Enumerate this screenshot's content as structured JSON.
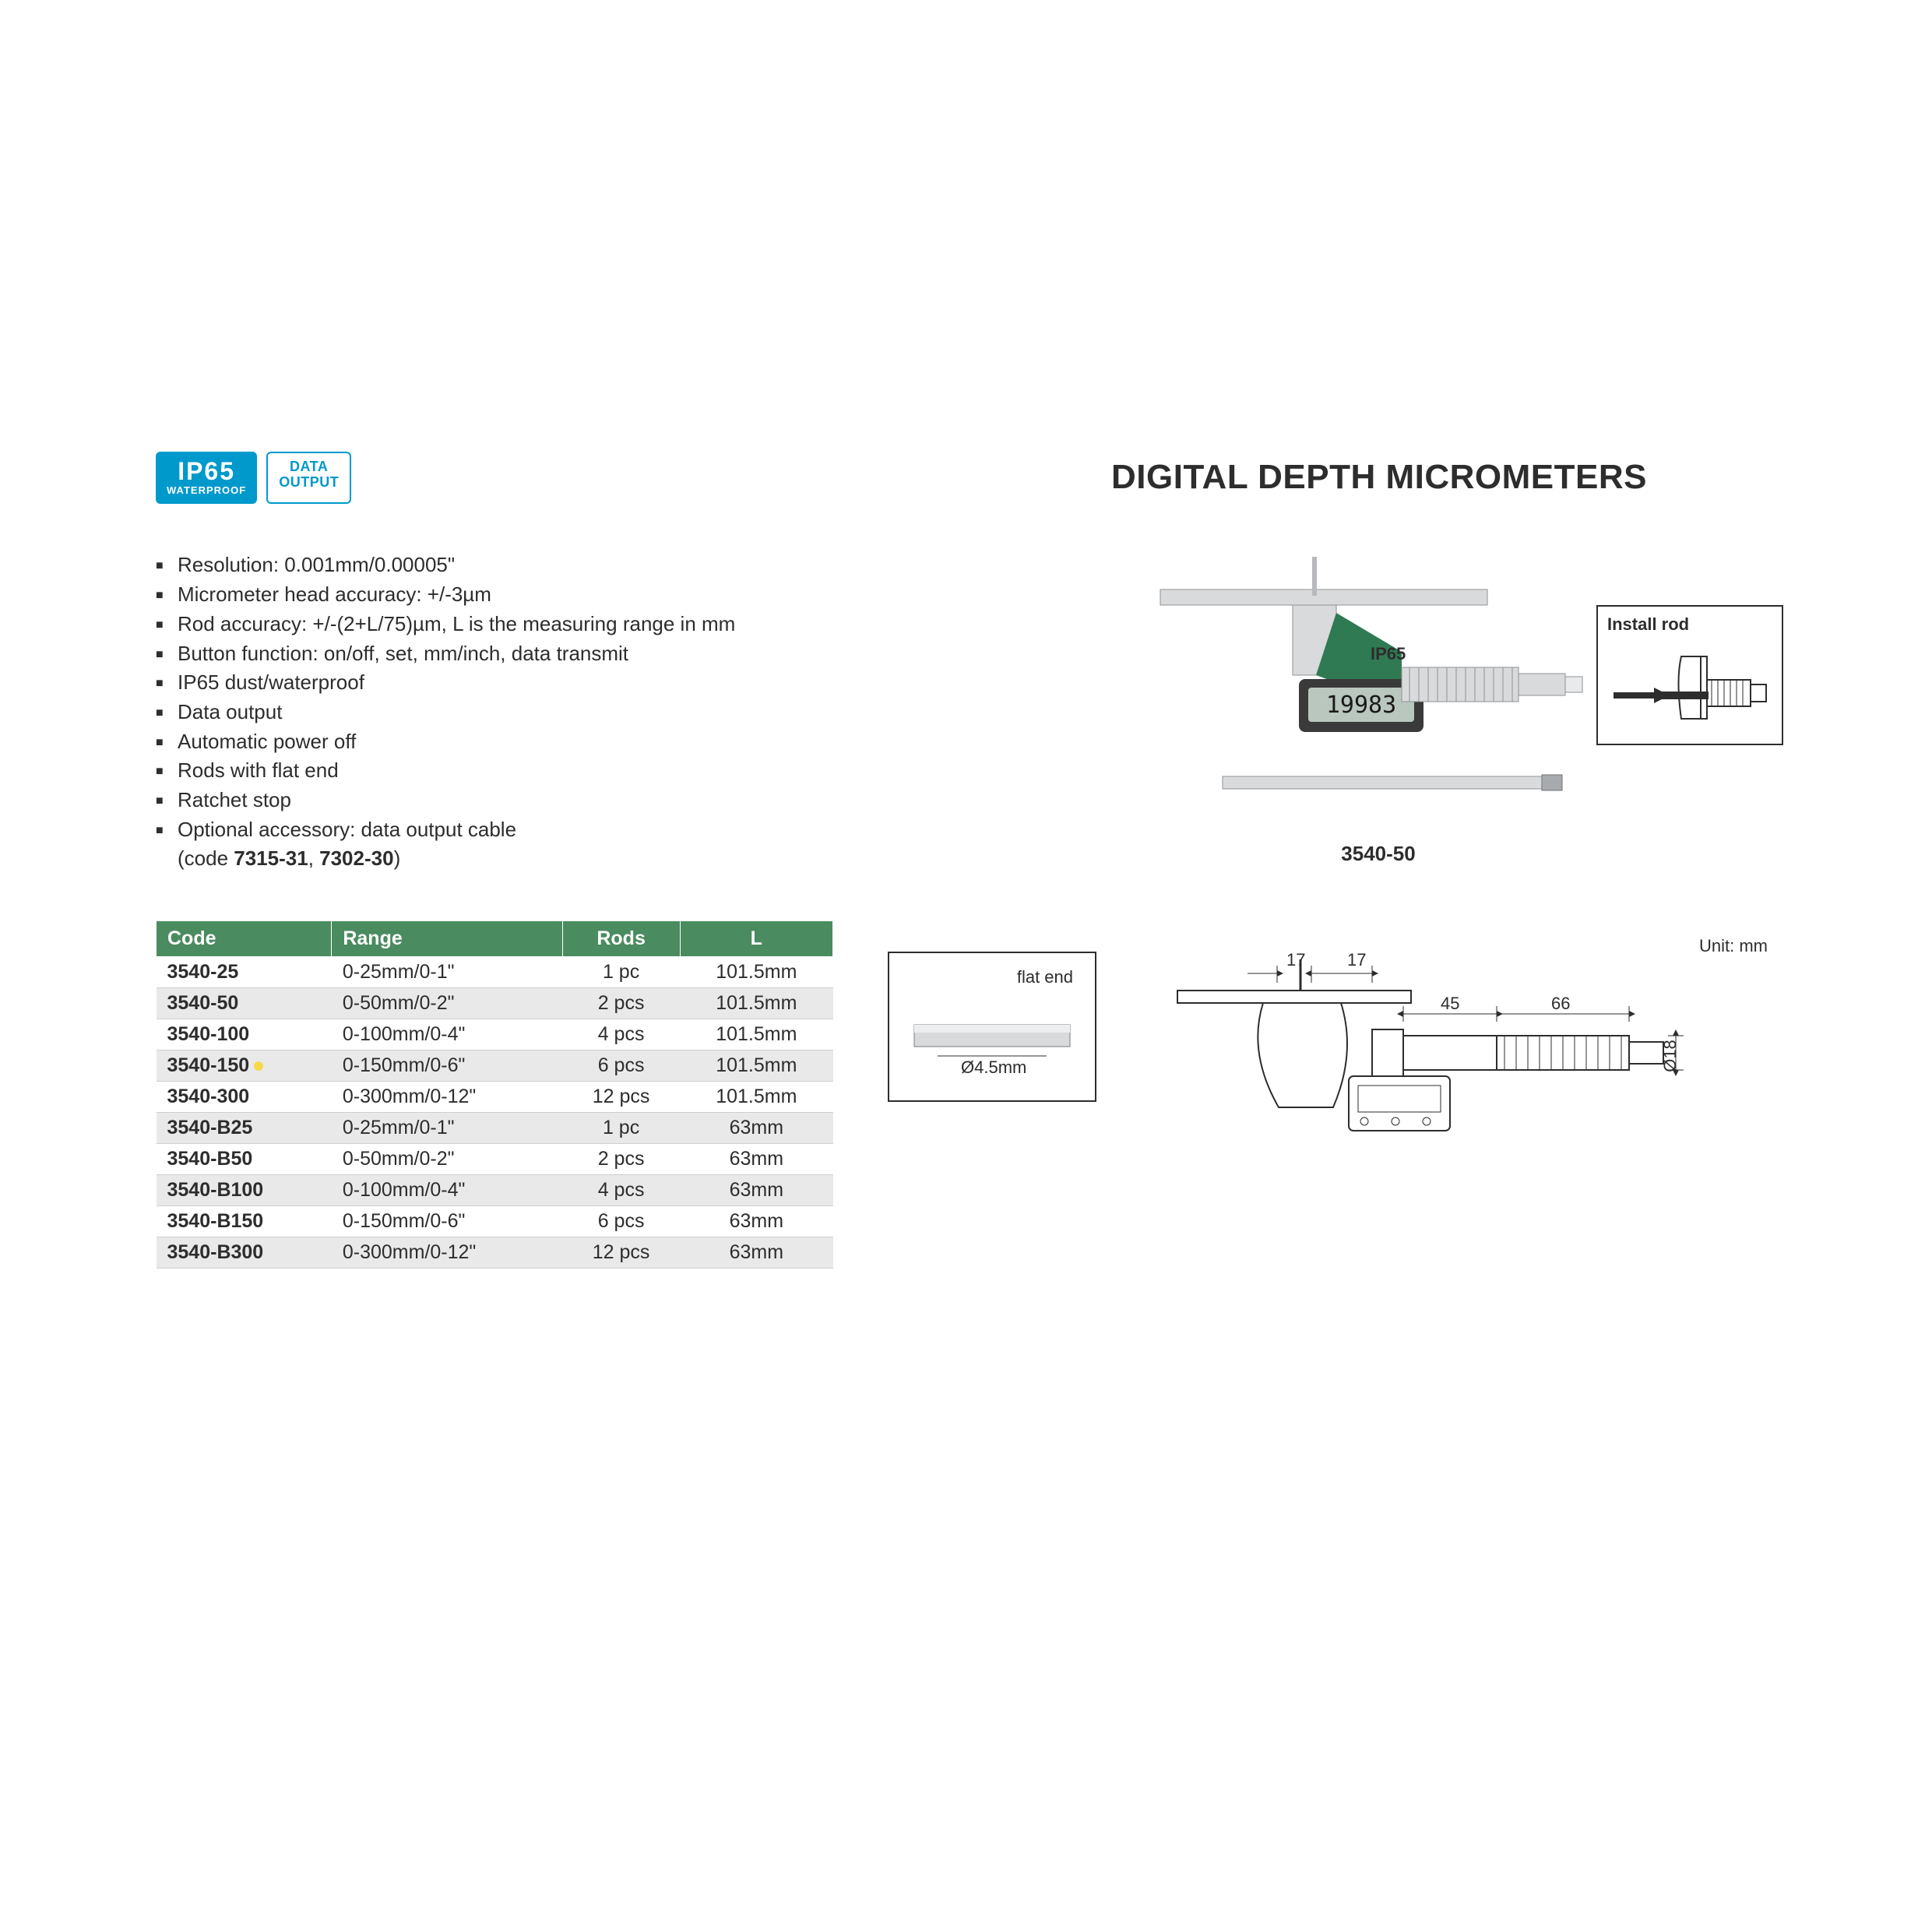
{
  "title": "DIGITAL DEPTH MICROMETERS",
  "badges": {
    "ip65_big": "IP65",
    "ip65_small": "WATERPROOF",
    "data1": "DATA",
    "data2": "OUTPUT"
  },
  "specs": [
    "Resolution: 0.001mm/0.00005\"",
    "Micrometer head accuracy: +/-3µm",
    "Rod accuracy: +/-(2+L/75)µm, L is the measuring range in mm",
    "Button function: on/off, set, mm/inch, data transmit",
    "IP65 dust/waterproof",
    "Data output",
    "Automatic power off",
    "Rods with flat end",
    "Ratchet stop",
    "Optional accessory: data output cable"
  ],
  "specs_sub": "(code 7315-31, 7302-30)",
  "specs_sub_bold1": "7315-31",
  "specs_sub_bold2": "7302-30",
  "product_caption": "3540-50",
  "product_display_value": "19983",
  "product_ip_label": "IP65",
  "install_label": "Install rod",
  "unit_label": "Unit: mm",
  "flat_end_label": "flat end",
  "flat_end_dia": "Ø4.5mm",
  "dims": {
    "t1": "17",
    "t2": "17",
    "d1": "45",
    "d2": "66",
    "dia": "Ø18"
  },
  "table": {
    "headers": [
      "Code",
      "Range",
      "Rods",
      "L"
    ],
    "header_bg": "#4a8b5f",
    "header_fg": "#ffffff",
    "row_odd_bg": "#ffffff",
    "row_even_bg": "#e9e9e9",
    "highlight_dot_color": "#f5d94a",
    "highlighted_row_index": 3,
    "col_align": [
      "left",
      "left",
      "center",
      "center"
    ],
    "rows": [
      [
        "3540-25",
        "0-25mm/0-1\"",
        "1 pc",
        "101.5mm"
      ],
      [
        "3540-50",
        "0-50mm/0-2\"",
        "2 pcs",
        "101.5mm"
      ],
      [
        "3540-100",
        "0-100mm/0-4\"",
        "4 pcs",
        "101.5mm"
      ],
      [
        "3540-150",
        "0-150mm/0-6\"",
        "6 pcs",
        "101.5mm"
      ],
      [
        "3540-300",
        "0-300mm/0-12\"",
        "12 pcs",
        "101.5mm"
      ],
      [
        "3540-B25",
        "0-25mm/0-1\"",
        "1 pc",
        "63mm"
      ],
      [
        "3540-B50",
        "0-50mm/0-2\"",
        "2 pcs",
        "63mm"
      ],
      [
        "3540-B100",
        "0-100mm/0-4\"",
        "4 pcs",
        "63mm"
      ],
      [
        "3540-B150",
        "0-150mm/0-6\"",
        "6 pcs",
        "63mm"
      ],
      [
        "3540-B300",
        "0-300mm/0-12\"",
        "12 pcs",
        "63mm"
      ]
    ]
  },
  "colors": {
    "badge_blue": "#0099cc",
    "table_header": "#4a8b5f",
    "micrometer_green": "#2f7a53",
    "micrometer_dark": "#3a3a3a",
    "metal": "#d8dadc",
    "metal_dark": "#a8abae"
  }
}
